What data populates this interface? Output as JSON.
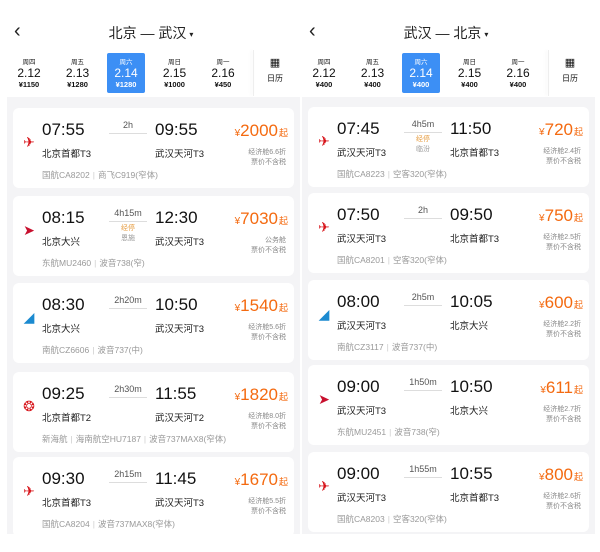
{
  "panels": [
    {
      "title": "北京 — 武汉",
      "calendar_label": "日历",
      "dates": [
        {
          "weekday": "周四",
          "date": "2.12",
          "price": "¥1150"
        },
        {
          "weekday": "周五",
          "date": "2.13",
          "price": "¥1280"
        },
        {
          "weekday": "周六",
          "date": "2.14",
          "price": "¥1280",
          "selected": true
        },
        {
          "weekday": "周日",
          "date": "2.15",
          "price": "¥1000"
        },
        {
          "weekday": "周一",
          "date": "2.16",
          "price": "¥450"
        }
      ],
      "flights": [
        {
          "airline_icon": "air-china",
          "dep_time": "07:55",
          "arr_time": "09:55",
          "duration": "2h",
          "dep_airport": "北京首都T3",
          "arr_airport": "武汉天河T3",
          "price": "2000",
          "cabin": "经济舱6.6折",
          "tax": "票价不含税",
          "info": [
            "国航CA8202",
            "商飞C919(窄体)"
          ]
        },
        {
          "airline_icon": "china-eastern",
          "dep_time": "08:15",
          "arr_time": "12:30",
          "duration": "4h15m",
          "stop": "经停",
          "stop_city": "恩施",
          "dep_airport": "北京大兴",
          "arr_airport": "武汉天河T3",
          "price": "7030",
          "cabin": "公务舱",
          "tax": "票价不含税",
          "info": [
            "东航MU2460",
            "波音738(窄)"
          ]
        },
        {
          "airline_icon": "china-southern",
          "dep_time": "08:30",
          "arr_time": "10:50",
          "duration": "2h20m",
          "dep_airport": "北京大兴",
          "arr_airport": "武汉天河T3",
          "price": "1540",
          "cabin": "经济舱5.6折",
          "tax": "票价不含税",
          "info": [
            "南航CZ6606",
            "波音737(中)"
          ]
        },
        {
          "airline_icon": "hainan",
          "dep_time": "09:25",
          "arr_time": "11:55",
          "duration": "2h30m",
          "dep_airport": "北京首都T2",
          "arr_airport": "武汉天河T2",
          "price": "1820",
          "cabin": "经济舱8.0折",
          "tax": "票价不含税",
          "info": [
            "新海航",
            "海南航空HU7187",
            "波音737MAX8(窄体)"
          ]
        },
        {
          "airline_icon": "air-china",
          "dep_time": "09:30",
          "arr_time": "11:45",
          "duration": "2h15m",
          "dep_airport": "北京首都T3",
          "arr_airport": "武汉天河T3",
          "price": "1670",
          "cabin": "经济舱5.5折",
          "tax": "票价不含税",
          "info": [
            "国航CA8204",
            "波音737MAX8(窄体)"
          ]
        }
      ]
    },
    {
      "title": "武汉 — 北京",
      "calendar_label": "日历",
      "dates": [
        {
          "weekday": "周四",
          "date": "2.12",
          "price": "¥400"
        },
        {
          "weekday": "周五",
          "date": "2.13",
          "price": "¥400"
        },
        {
          "weekday": "周六",
          "date": "2.14",
          "price": "¥400",
          "selected": true
        },
        {
          "weekday": "周日",
          "date": "2.15",
          "price": "¥400"
        },
        {
          "weekday": "周一",
          "date": "2.16",
          "price": "¥400"
        }
      ],
      "flights": [
        {
          "airline_icon": "air-china",
          "dep_time": "07:45",
          "arr_time": "11:50",
          "duration": "4h5m",
          "stop": "经停",
          "stop_city": "临汾",
          "dep_airport": "武汉天河T3",
          "arr_airport": "北京首都T3",
          "price": "720",
          "cabin": "经济舱2.4折",
          "tax": "票价不含税",
          "info": [
            "国航CA8223",
            "空客320(窄体)"
          ]
        },
        {
          "airline_icon": "air-china",
          "dep_time": "07:50",
          "arr_time": "09:50",
          "duration": "2h",
          "dep_airport": "武汉天河T3",
          "arr_airport": "北京首都T3",
          "price": "750",
          "cabin": "经济舱2.5折",
          "tax": "票价不含税",
          "info": [
            "国航CA8201",
            "空客320(窄体)"
          ]
        },
        {
          "airline_icon": "china-southern",
          "dep_time": "08:00",
          "arr_time": "10:05",
          "duration": "2h5m",
          "dep_airport": "武汉天河T3",
          "arr_airport": "北京大兴",
          "price": "600",
          "cabin": "经济舱2.2折",
          "tax": "票价不含税",
          "info": [
            "南航CZ3117",
            "波音737(中)"
          ]
        },
        {
          "airline_icon": "china-eastern",
          "dep_time": "09:00",
          "arr_time": "10:50",
          "duration": "1h50m",
          "dep_airport": "武汉天河T3",
          "arr_airport": "北京大兴",
          "price": "611",
          "cabin": "经济舱2.7折",
          "tax": "票价不含税",
          "info": [
            "东航MU2451",
            "波音738(窄)"
          ]
        },
        {
          "airline_icon": "air-china",
          "dep_time": "09:00",
          "arr_time": "10:55",
          "duration": "1h55m",
          "dep_airport": "武汉天河T3",
          "arr_airport": "北京首都T3",
          "price": "800",
          "cabin": "经济舱2.6折",
          "tax": "票价不含税",
          "info": [
            "国航CA8203",
            "空客320(窄体)"
          ]
        }
      ]
    }
  ],
  "labels": {
    "currency": "¥",
    "from_suffix": "起",
    "back_icon": "‹",
    "caret": "▾"
  },
  "colors": {
    "accent": "#3c8ff5",
    "price": "#f46a10",
    "stop": "#e69a3c"
  }
}
